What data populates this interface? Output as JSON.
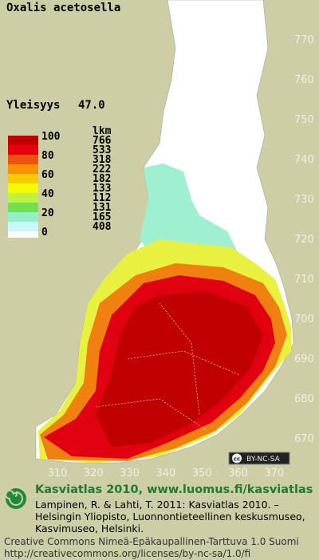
{
  "title": "Oxalis acetosella",
  "prevalence": {
    "label": "Yleisyys",
    "value": "47.0"
  },
  "legend": {
    "header": "lkm",
    "levels": [
      "100",
      "80",
      "60",
      "40",
      "20",
      "0"
    ],
    "counts": [
      "766",
      "533",
      "318",
      "222",
      "182",
      "133",
      "112",
      "131",
      "165",
      "408"
    ]
  },
  "map": {
    "northing_ticks": [
      "770",
      "760",
      "750",
      "740",
      "730",
      "720",
      "710",
      "700",
      "690",
      "680",
      "670"
    ],
    "easting_ticks": [
      "310",
      "320",
      "330",
      "340",
      "350",
      "360",
      "370"
    ],
    "license_badge": {
      "symbol": "cc",
      "text": "BY-NC-SA"
    }
  },
  "footer": {
    "heading": "Kasviatlas 2010, www.luomus.fi/kasviatlas",
    "citation": [
      "Lampinen, R. & Lahti, T. 2011: Kasviatlas 2010. –",
      "Helsingin Yliopisto, Luonnontieteellinen keskusmuseo,",
      "Kasvimuseo, Helsinki."
    ],
    "license": [
      "Creative Commons Nimeä-Epäkaupallinen-Tarttuva 1.0 Suomi",
      "http://creativecommons.org/licenses/by-nc-sa/1.0/fi"
    ]
  }
}
